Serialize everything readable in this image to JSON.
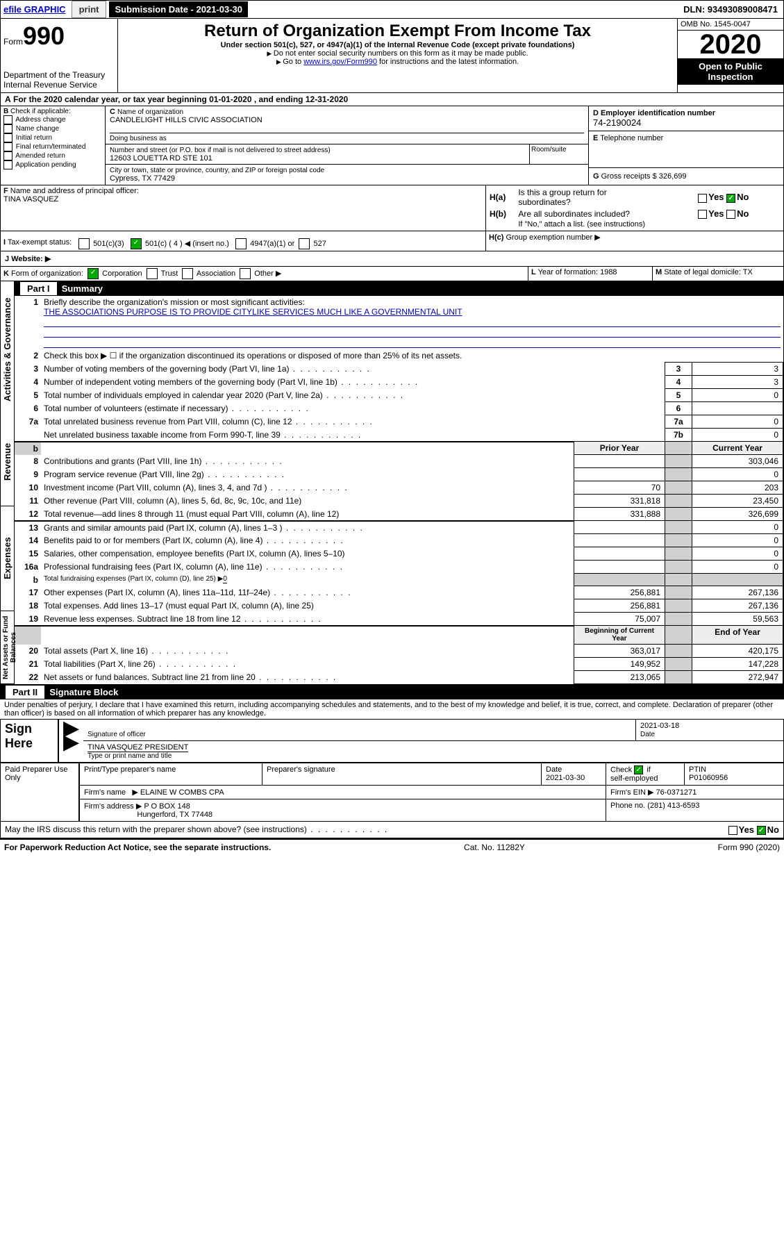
{
  "topbar": {
    "efile": "efile GRAPHIC",
    "print": "print",
    "sd_label": "Submission Date - ",
    "sd_val": "2021-03-30",
    "dln": "DLN: 93493089008471"
  },
  "hdr": {
    "form": "Form",
    "num": "990",
    "title": "Return of Organization Exempt From Income Tax",
    "sub1": "Under section 501(c), 527, or 4947(a)(1) of the Internal Revenue Code (except private foundations)",
    "sub2": "Do not enter social security numbers on this form as it may be made public.",
    "sub3": "Go to ",
    "sub3link": "www.irs.gov/Form990",
    "sub3b": " for instructions and the latest information.",
    "dept": "Department of the Treasury",
    "irs": "Internal Revenue Service",
    "omb": "OMB No. 1545-0047",
    "year": "2020",
    "open": "Open to Public",
    "insp": "Inspection"
  },
  "A": {
    "text": "For the 2020 calendar year, or tax year beginning 01-01-2020    , and ending 12-31-2020"
  },
  "B": {
    "hdr": "Check if applicable:",
    "items": [
      "Address change",
      "Name change",
      "Initial return",
      "Final return/terminated",
      "Amended return",
      "Application pending"
    ]
  },
  "C": {
    "name_lbl": "Name of organization",
    "name": "CANDLELIGHT HILLS CIVIC ASSOCIATION",
    "dba_lbl": "Doing business as",
    "addr_lbl": "Number and street (or P.O. box if mail is not delivered to street address)",
    "room": "Room/suite",
    "addr": "12603 LOUETTA RD STE 101",
    "city_lbl": "City or town, state or province, country, and ZIP or foreign postal code",
    "city": "Cypress, TX  77429"
  },
  "D": {
    "lbl": "Employer identification number",
    "val": "74-2190024"
  },
  "E": {
    "lbl": "Telephone number"
  },
  "F": {
    "lbl": "Name and address of principal officer:",
    "val": "TINA VASQUEZ"
  },
  "G": {
    "lbl": "Gross receipts $",
    "val": "326,699"
  },
  "H": {
    "a": "Is this a group return for",
    "a2": "subordinates?",
    "b": "Are all subordinates included?",
    "yes": "Yes",
    "no": "No",
    "ifno": "If \"No,\" attach a list. (see instructions)",
    "c": "Group exemption number ▶"
  },
  "I": {
    "lbl": "Tax-exempt status:",
    "o1": "501(c)(3)",
    "o2": "501(c) ( 4 ) ◀ (insert no.)",
    "o3": "4947(a)(1) or",
    "o4": "527"
  },
  "J": {
    "lbl": "Website: ▶"
  },
  "K": {
    "lbl": "Form of organization:",
    "o1": "Corporation",
    "o2": "Trust",
    "o3": "Association",
    "o4": "Other ▶"
  },
  "L": {
    "lbl": "Year of formation:",
    "val": "1988"
  },
  "M": {
    "lbl": "State of legal domicile:",
    "val": "TX"
  },
  "part1": {
    "hdr": "Part I",
    "title": "Summary"
  },
  "tabs": {
    "ag": "Activities & Governance",
    "rev": "Revenue",
    "exp": "Expenses",
    "nab": "Net Assets or Fund Balances"
  },
  "q": {
    "1": "Briefly describe the organization's mission or most significant activities:",
    "1v": "THE ASSOCIATIONS PURPOSE IS TO PROVIDE CITYLIKE SERVICES MUCH LIKE A GOVERNMENTAL UNIT",
    "2": "Check this box ▶ ☐  if the organization discontinued its operations or disposed of more than 25% of its net assets.",
    "3": "Number of voting members of the governing body (Part VI, line 1a)",
    "4": "Number of independent voting members of the governing body (Part VI, line 1b)",
    "5": "Total number of individuals employed in calendar year 2020 (Part V, line 2a)",
    "6": "Total number of volunteers (estimate if necessary)",
    "7a": "Total unrelated business revenue from Part VIII, column (C), line 12",
    "7b": "Net unrelated business taxable income from Form 990-T, line 39",
    "py": "Prior Year",
    "cy": "Current Year",
    "8": "Contributions and grants (Part VIII, line 1h)",
    "9": "Program service revenue (Part VIII, line 2g)",
    "10": "Investment income (Part VIII, column (A), lines 3, 4, and 7d )",
    "11": "Other revenue (Part VIII, column (A), lines 5, 6d, 8c, 9c, 10c, and 11e)",
    "12": "Total revenue—add lines 8 through 11 (must equal Part VIII, column (A), line 12)",
    "13": "Grants and similar amounts paid (Part IX, column (A), lines 1–3 )",
    "14": "Benefits paid to or for members (Part IX, column (A), line 4)",
    "15": "Salaries, other compensation, employee benefits (Part IX, column (A), lines 5–10)",
    "16a": "Professional fundraising fees (Part IX, column (A), line 11e)",
    "16b": "Total fundraising expenses (Part IX, column (D), line 25) ▶",
    "16bv": "0",
    "17": "Other expenses (Part IX, column (A), lines 11a–11d, 11f–24e)",
    "18": "Total expenses. Add lines 13–17 (must equal Part IX, column (A), line 25)",
    "19": "Revenue less expenses. Subtract line 18 from line 12",
    "bcy": "Beginning of Current Year",
    "eoy": "End of Year",
    "20": "Total assets (Part X, line 16)",
    "21": "Total liabilities (Part X, line 26)",
    "22": "Net assets or fund balances. Subtract line 21 from line 20"
  },
  "v": {
    "3": "3",
    "4": "3",
    "5": "0",
    "6": "",
    "7a": "0",
    "7b": "0",
    "8p": "",
    "8c": "303,046",
    "9p": "",
    "9c": "0",
    "10p": "70",
    "10c": "203",
    "11p": "331,818",
    "11c": "23,450",
    "12p": "331,888",
    "12c": "326,699",
    "13p": "",
    "13c": "0",
    "14p": "",
    "14c": "0",
    "15p": "",
    "15c": "0",
    "16ap": "",
    "16ac": "0",
    "17p": "256,881",
    "17c": "267,136",
    "18p": "256,881",
    "18c": "267,136",
    "19p": "75,007",
    "19c": "59,563",
    "20b": "363,017",
    "20e": "420,175",
    "21b": "149,952",
    "21e": "147,228",
    "22b": "213,065",
    "22e": "272,947"
  },
  "part2": {
    "hdr": "Part II",
    "title": "Signature Block",
    "decl": "Under penalties of perjury, I declare that I have examined this return, including accompanying schedules and statements, and to the best of my knowledge and belief, it is true, correct, and complete. Declaration of preparer (other than officer) is based on all information of which preparer has any knowledge."
  },
  "sign": {
    "here": "Sign Here",
    "sig": "Signature of officer",
    "date_lbl": "Date",
    "date": "2021-03-18",
    "name": "TINA VASQUEZ  PRESIDENT",
    "type": "Type or print name and title"
  },
  "prep": {
    "hdr": "Paid Preparer Use Only",
    "pt": "Print/Type preparer's name",
    "ps": "Preparer's signature",
    "dt": "Date",
    "dtv": "2021-03-30",
    "chk": "Check",
    "if": "if",
    "se": "self-employed",
    "ptin_lbl": "PTIN",
    "ptin": "P01060956",
    "fn_lbl": "Firm's name",
    "fn": "ELAINE W COMBS CPA",
    "fein_lbl": "Firm's EIN ▶",
    "fein": "76-0371271",
    "fa_lbl": "Firm's address ▶",
    "fa1": "P O BOX 148",
    "fa2": "Hungerford, TX  77448",
    "ph_lbl": "Phone no.",
    "ph": "(281) 413-6593"
  },
  "discuss": "May the IRS discuss this return with the preparer shown above? (see instructions)",
  "footer": {
    "l": "For Paperwork Reduction Act Notice, see the separate instructions.",
    "c": "Cat. No. 11282Y",
    "r": "Form 990 (2020)"
  }
}
